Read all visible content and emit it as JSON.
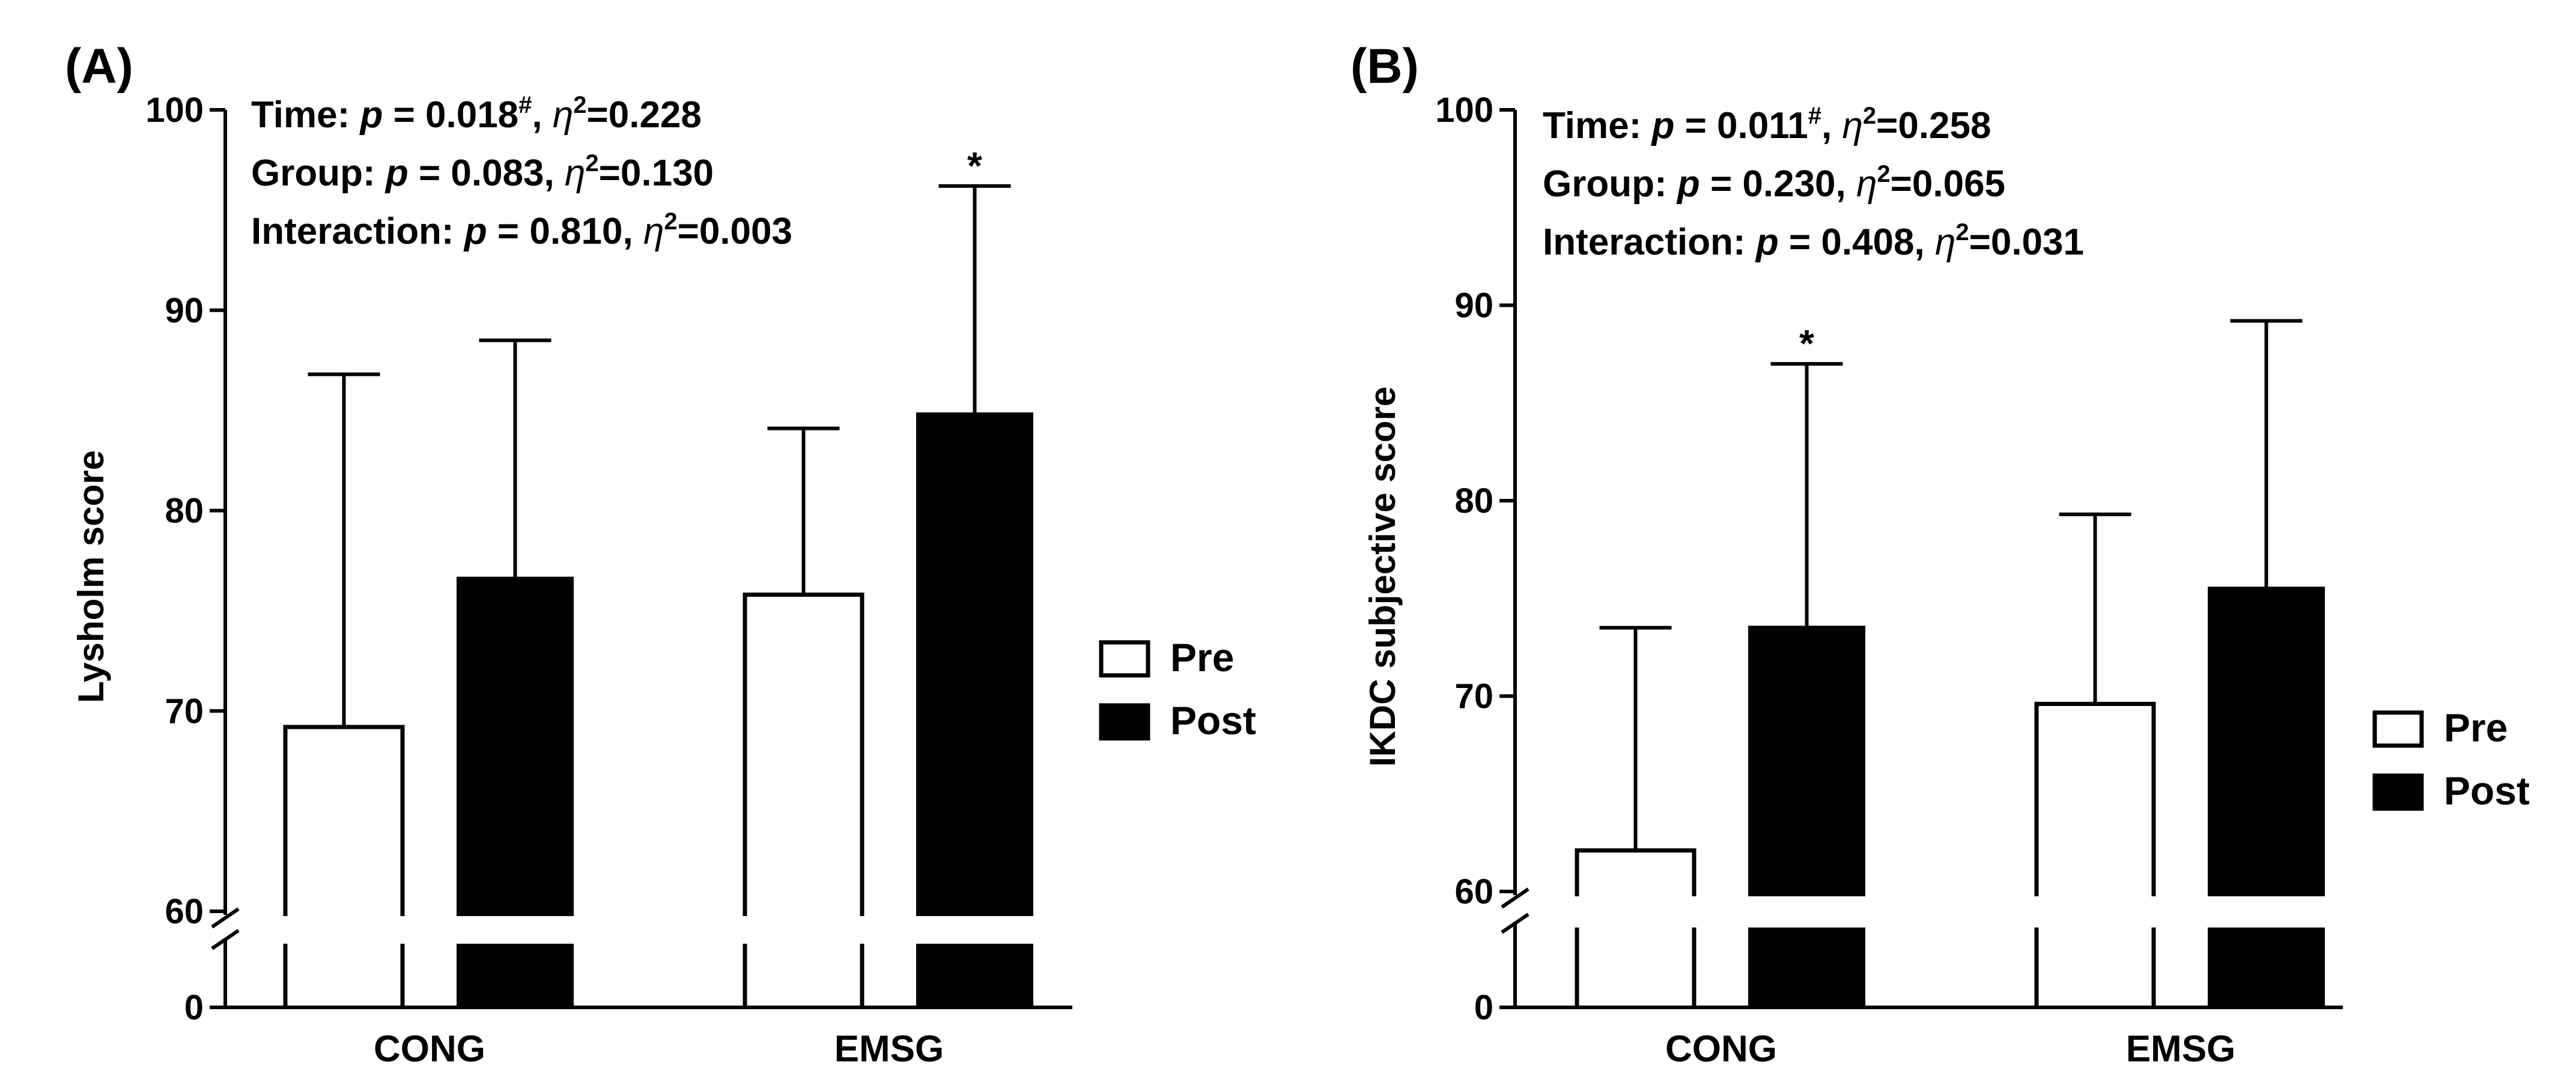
{
  "chart_data": [
    {
      "type": "bar",
      "panel_label": "(A)",
      "ylabel": "Lysholm score",
      "categories": [
        "CONG",
        "EMSG"
      ],
      "series": [
        {
          "name": "Pre",
          "values": [
            69.2,
            75.8
          ],
          "sd": [
            17.6,
            8.3
          ],
          "color": "#ffffff"
        },
        {
          "name": "Post",
          "values": [
            76.7,
            84.9
          ],
          "sd": [
            11.8,
            11.3
          ],
          "color": "#000000"
        }
      ],
      "significance": [
        {
          "category": "EMSG",
          "series": "Post",
          "marker": "*"
        }
      ],
      "y_ticks": [
        0,
        60,
        70,
        80,
        90,
        100
      ],
      "y_break": [
        0,
        60
      ],
      "ylim": [
        60,
        100
      ],
      "stats": [
        {
          "label": "Time:",
          "p": "p",
          "eq": "= 0.018",
          "sup": "#",
          "sep": ",",
          "eta": "η",
          "eta_sup": "2",
          "val": "=0.228"
        },
        {
          "label": "Group:",
          "p": "p",
          "eq": "= 0.083,",
          "sup": "",
          "sep": "",
          "eta": "η",
          "eta_sup": "2",
          "val": "=0.130"
        },
        {
          "label": "Interaction:",
          "p": "p",
          "eq": "= 0.810,",
          "sup": "",
          "sep": "",
          "eta": "η",
          "eta_sup": "2",
          "val": "=0.003"
        }
      ],
      "legend": {
        "position": "right",
        "items": [
          "Pre",
          "Post"
        ]
      }
    },
    {
      "type": "bar",
      "panel_label": "(B)",
      "ylabel": "IKDC subjective score",
      "categories": [
        "CONG",
        "EMSG"
      ],
      "series": [
        {
          "name": "Pre",
          "values": [
            62.1,
            69.6
          ],
          "sd": [
            11.4,
            9.7
          ],
          "color": "#ffffff"
        },
        {
          "name": "Post",
          "values": [
            73.6,
            75.6
          ],
          "sd": [
            13.4,
            13.6
          ],
          "color": "#000000"
        }
      ],
      "significance": [
        {
          "category": "CONG",
          "series": "Post",
          "marker": "*"
        }
      ],
      "y_ticks": [
        0,
        60,
        70,
        80,
        90,
        100
      ],
      "y_break": [
        0,
        60
      ],
      "ylim": [
        60,
        100
      ],
      "stats": [
        {
          "label": "Time:",
          "p": "p",
          "eq": "= 0.011",
          "sup": "#",
          "sep": ",",
          "eta": "η",
          "eta_sup": "2",
          "val": "=0.258"
        },
        {
          "label": "Group:",
          "p": "p",
          "eq": "= 0.230,",
          "sup": "",
          "sep": "",
          "eta": "η",
          "eta_sup": "2",
          "val": "=0.065"
        },
        {
          "label": "Interaction:",
          "p": "p",
          "eq": "= 0.408,",
          "sup": "",
          "sep": "",
          "eta": "η",
          "eta_sup": "2",
          "val": "=0.031"
        }
      ],
      "legend": {
        "position": "right",
        "items": [
          "Pre",
          "Post"
        ]
      }
    }
  ]
}
